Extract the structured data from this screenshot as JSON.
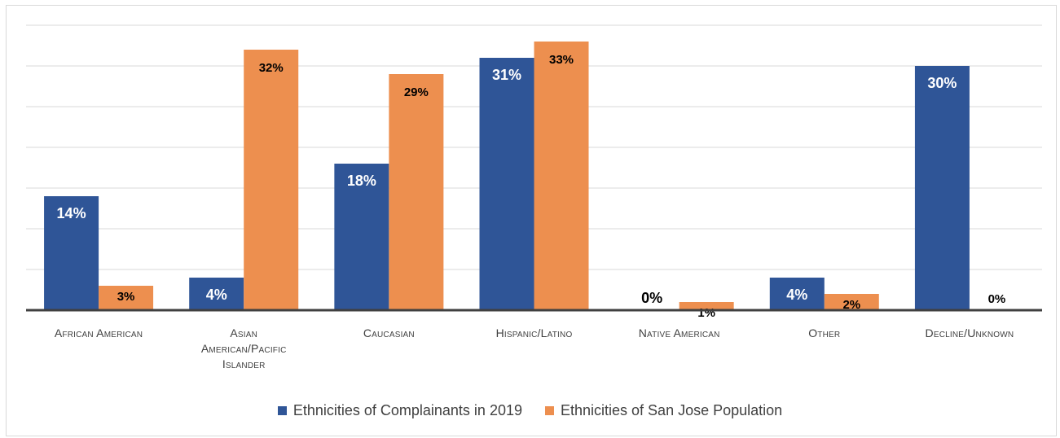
{
  "chart_data": {
    "type": "bar",
    "categories": [
      "African American",
      "Asian American/Pacific Islander",
      "Caucasian",
      "Hispanic/Latino",
      "Native American",
      "Other",
      "Decline/Unknown"
    ],
    "category_lines": [
      [
        "African American"
      ],
      [
        "Asian",
        "American/Pacific",
        "Islander"
      ],
      [
        "Caucasian"
      ],
      [
        "Hispanic/Latino"
      ],
      [
        "Native American"
      ],
      [
        "Other"
      ],
      [
        "Decline/Unknown"
      ]
    ],
    "series": [
      {
        "name": "Ethnicities of Complainants in 2019",
        "color": "#2f5597",
        "values": [
          14,
          4,
          18,
          31,
          0,
          4,
          30
        ],
        "labels": [
          "14%",
          "4%",
          "18%",
          "31%",
          "0%",
          "4%",
          "30%"
        ]
      },
      {
        "name": "Ethnicities of San Jose Population",
        "color": "#ed8f4f",
        "values": [
          3,
          32,
          29,
          33,
          1,
          2,
          0
        ],
        "labels": [
          "3%",
          "32%",
          "29%",
          "33%",
          "1%",
          "2%",
          "0%"
        ]
      }
    ],
    "ylim": [
      0,
      35
    ],
    "grid": true,
    "legend_position": "bottom",
    "ylabel": "",
    "xlabel": "",
    "title": ""
  }
}
